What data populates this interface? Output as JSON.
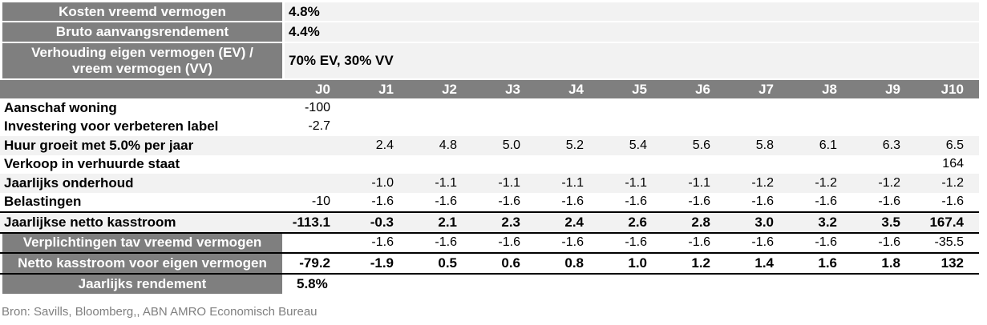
{
  "params": [
    {
      "label": "Kosten vreemd vermogen",
      "value": "4.8%"
    },
    {
      "label": "Bruto aanvangsrendement",
      "value": "4.4%"
    },
    {
      "label": "Verhouding eigen vermogen (EV) / vreem vermogen (VV)",
      "value": "70% EV, 30% VV"
    }
  ],
  "years": [
    "J0",
    "J1",
    "J2",
    "J3",
    "J4",
    "J5",
    "J6",
    "J7",
    "J8",
    "J9",
    "J10"
  ],
  "rows": [
    {
      "label": "Aanschaf woning",
      "values": [
        "-100",
        "",
        "",
        "",
        "",
        "",
        "",
        "",
        "",
        "",
        ""
      ]
    },
    {
      "label": "Investering voor verbeteren label",
      "values": [
        "-2.7",
        "",
        "",
        "",
        "",
        "",
        "",
        "",
        "",
        "",
        ""
      ]
    },
    {
      "label": "Huur groeit met 5.0% per jaar",
      "values": [
        "",
        "2.4",
        "4.8",
        "5.0",
        "5.2",
        "5.4",
        "5.6",
        "5.8",
        "6.1",
        "6.3",
        "6.5"
      ]
    },
    {
      "label": "Verkoop in verhuurde staat",
      "values": [
        "",
        "",
        "",
        "",
        "",
        "",
        "",
        "",
        "",
        "",
        "164"
      ]
    },
    {
      "label": "Jaarlijks onderhoud",
      "values": [
        "",
        "-1.0",
        "-1.1",
        "-1.1",
        "-1.1",
        "-1.1",
        "-1.1",
        "-1.2",
        "-1.2",
        "-1.2",
        "-1.2"
      ]
    },
    {
      "label": "Belastingen",
      "values": [
        "-10",
        "-1.6",
        "-1.6",
        "-1.6",
        "-1.6",
        "-1.6",
        "-1.6",
        "-1.6",
        "-1.6",
        "-1.6",
        "-1.6"
      ]
    },
    {
      "label": "Jaarlijkse netto kasstroom",
      "values": [
        "-113.1",
        "-0.3",
        "2.1",
        "2.3",
        "2.4",
        "2.6",
        "2.8",
        "3.0",
        "3.2",
        "3.5",
        "167.4"
      ]
    },
    {
      "label": "Verplichtingen tav vreemd vermogen",
      "values": [
        "",
        "-1.6",
        "-1.6",
        "-1.6",
        "-1.6",
        "-1.6",
        "-1.6",
        "-1.6",
        "-1.6",
        "-1.6",
        "-35.5"
      ]
    },
    {
      "label": "Netto kasstroom voor eigen vermogen",
      "values": [
        "-79.2",
        "-1.9",
        "0.5",
        "0.6",
        "0.8",
        "1.0",
        "1.2",
        "1.4",
        "1.6",
        "1.8",
        "132"
      ]
    }
  ],
  "rendement": {
    "label": "Jaarlijks rendement",
    "value": "5.8%"
  },
  "source": "Bron: Savills, Bloomberg,, ABN AMRO Economisch Bureau"
}
